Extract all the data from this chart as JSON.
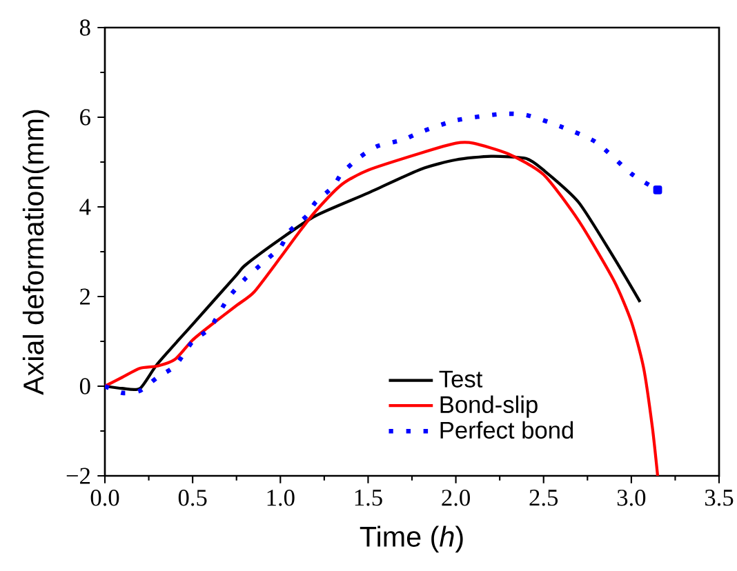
{
  "chart_data": {
    "type": "line",
    "xlabel": "Time (*h*)",
    "ylabel": "Axial deformation(mm)",
    "xlim": [
      0,
      3.5
    ],
    "ylim": [
      -2,
      8
    ],
    "xticks": [
      {
        "value": 0,
        "label": "0.0"
      },
      0.5,
      {
        "value": 1,
        "label": "1.0"
      },
      1.5,
      {
        "value": 2,
        "label": "2.0"
      },
      2.5,
      {
        "value": 3,
        "label": "3.0"
      },
      3.5
    ],
    "yticks": [
      {
        "value": -2,
        "label": "−2"
      },
      0,
      2,
      4,
      6,
      8
    ],
    "legend": "bottom right",
    "grid": false,
    "marker": "none",
    "series": [
      {
        "name": "Test",
        "color": "#000000",
        "line_style": "solid",
        "x": [
          0,
          0.1,
          0.2,
          0.3,
          0.5,
          0.75,
          0.8,
          1.0,
          1.2,
          1.5,
          1.8,
          2.0,
          2.2,
          2.4,
          2.5,
          2.7,
          2.9,
          3.05
        ],
        "values": [
          0,
          -0.05,
          -0.05,
          0.5,
          1.38,
          2.48,
          2.7,
          3.28,
          3.8,
          4.31,
          4.84,
          5.05,
          5.13,
          5.08,
          4.82,
          4.1,
          2.87,
          1.88
        ]
      },
      {
        "name": "Bond-slip",
        "color": "#ff0000",
        "line_style": "solid",
        "x": [
          0,
          0.1,
          0.2,
          0.3,
          0.4,
          0.5,
          0.6,
          0.75,
          0.85,
          1.0,
          1.1,
          1.2,
          1.35,
          1.5,
          1.8,
          2.0,
          2.1,
          2.3,
          2.5,
          2.7,
          2.9,
          3.0,
          3.07,
          3.12,
          3.15
        ],
        "values": [
          0,
          0.2,
          0.4,
          0.45,
          0.6,
          1.03,
          1.35,
          1.8,
          2.1,
          2.87,
          3.4,
          3.9,
          4.5,
          4.82,
          5.2,
          5.42,
          5.42,
          5.18,
          4.72,
          3.69,
          2.36,
          1.44,
          0.41,
          -0.92,
          -2
        ]
      },
      {
        "name": "Perfect bond",
        "color": "#0000ff",
        "line_style": "dotted",
        "x": [
          0,
          0.1,
          0.2,
          0.3,
          0.4,
          0.5,
          0.6,
          0.7,
          0.8,
          0.9,
          1.0,
          1.05,
          1.15,
          1.2,
          1.3,
          1.35,
          1.45,
          1.55,
          1.7,
          1.8,
          2.0,
          2.25,
          2.4,
          2.6,
          2.8,
          3.0,
          3.15
        ],
        "values": [
          0,
          -0.15,
          -0.1,
          0.2,
          0.45,
          1.0,
          1.3,
          1.95,
          2.4,
          2.75,
          3.1,
          3.45,
          3.8,
          4.1,
          4.45,
          4.75,
          5.1,
          5.35,
          5.5,
          5.67,
          5.93,
          6.07,
          6.05,
          5.79,
          5.44,
          4.74,
          4.38
        ]
      }
    ]
  }
}
